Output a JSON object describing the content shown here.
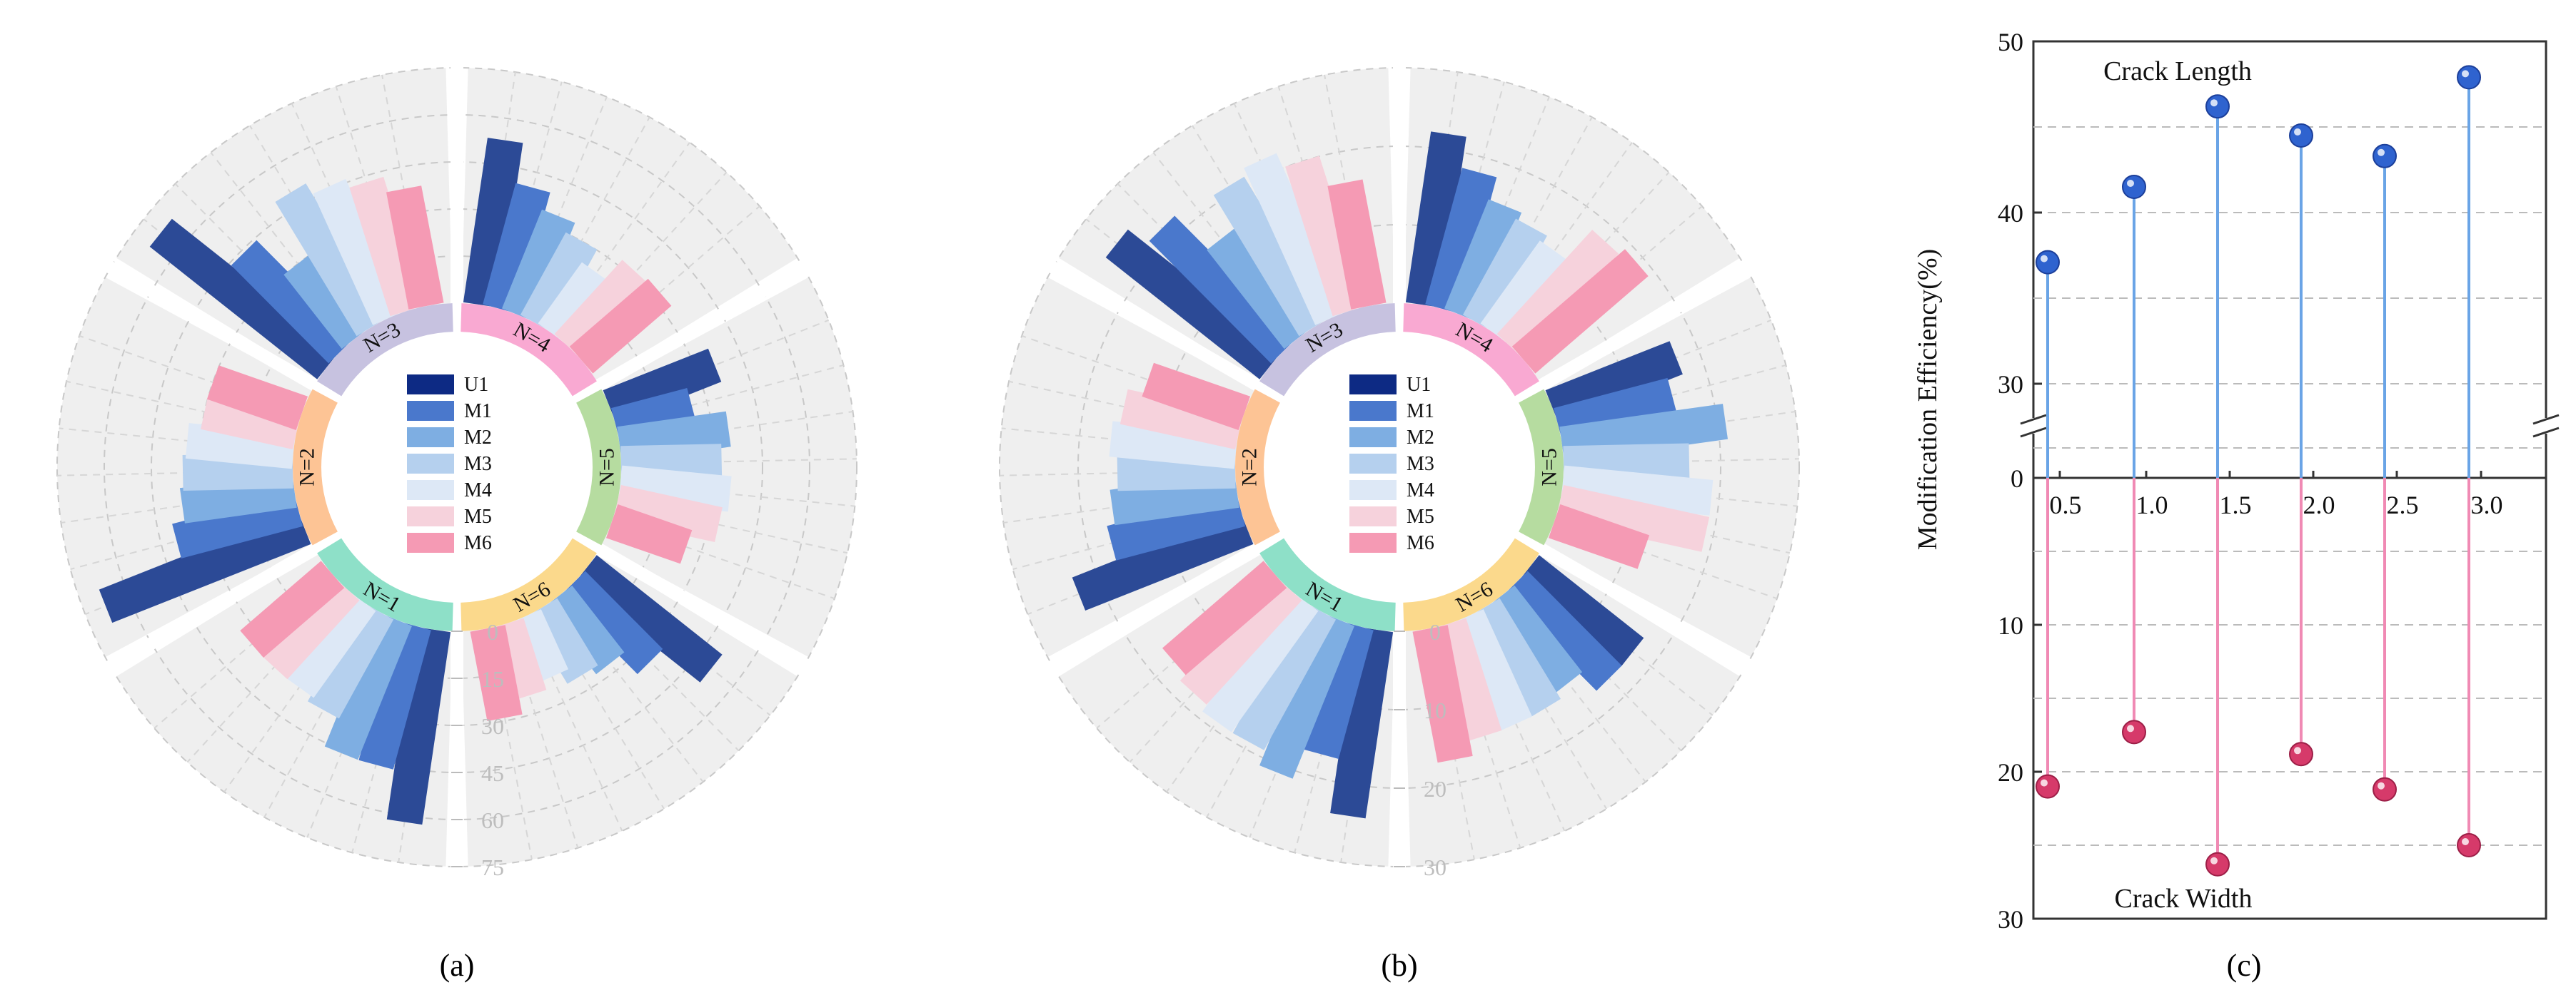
{
  "colors": {
    "U1": "#2c4a96",
    "M1": "#4a78cc",
    "M2": "#7eaee2",
    "M3": "#b5d0ee",
    "M4": "#dde8f6",
    "M5": "#f6d2dc",
    "M6": "#f59ab4",
    "ring_bg": "#efefef",
    "N1": "#8ee0c8",
    "N2": "#fdc495",
    "N3": "#c7c2e0",
    "N4": "#f9a9d2",
    "N5": "#b6dca0",
    "N6": "#fbd98c",
    "length_line": "#6aa4e6",
    "length_marker": "#2f63cf",
    "width_line": "#f08ab4",
    "width_marker": "#d63a6a",
    "grid": "#bbbbbb",
    "axis": "#333333"
  },
  "chart_data": [
    {
      "type": "polar-bar",
      "panel_label": "(a)",
      "legend": [
        "U1",
        "M1",
        "M2",
        "M3",
        "M4",
        "M5",
        "M6"
      ],
      "groups": [
        "N=1",
        "N=2",
        "N=3",
        "N=4",
        "N=5",
        "N=6"
      ],
      "radial_ticks": [
        "0",
        "15",
        "30",
        "45",
        "60",
        "75"
      ],
      "rlim": [
        0,
        75
      ],
      "series": [
        {
          "name": "U1",
          "values": [
            62,
            68,
            68,
            53,
            36,
            51
          ]
        },
        {
          "name": "M1",
          "values": [
            46,
            40,
            44,
            40,
            25,
            35
          ]
        },
        {
          "name": "M2",
          "values": [
            46,
            36,
            30,
            34,
            35,
            27
          ]
        },
        {
          "name": "M3",
          "values": [
            36,
            35,
            50,
            30,
            32,
            25
          ]
        },
        {
          "name": "M4",
          "values": [
            34,
            34,
            46,
            24,
            35,
            21
          ]
        },
        {
          "name": "M5",
          "values": [
            34,
            30,
            43,
            32,
            33,
            24
          ]
        },
        {
          "name": "M6",
          "values": [
            34,
            30,
            38,
            33,
            25,
            29
          ]
        }
      ]
    },
    {
      "type": "polar-bar",
      "panel_label": "(b)",
      "legend": [
        "U1",
        "M1",
        "M2",
        "M3",
        "M4",
        "M5",
        "M6"
      ],
      "groups": [
        "N=1",
        "N=2",
        "N=3",
        "N=4",
        "N=5",
        "N=6"
      ],
      "radial_ticks": [
        "0",
        "10",
        "20",
        "30"
      ],
      "rlim": [
        0,
        30
      ],
      "series": [
        {
          "name": "U1",
          "values": [
            24,
            23,
            25,
            22,
            17,
            17
          ]
        },
        {
          "name": "M1",
          "values": [
            17,
            17,
            22,
            18,
            15,
            17
          ]
        },
        {
          "name": "M2",
          "values": [
            21,
            16,
            16,
            15,
            21,
            14
          ]
        },
        {
          "name": "M3",
          "values": [
            19,
            15,
            21,
            14,
            16,
            15
          ]
        },
        {
          "name": "M4",
          "values": [
            19,
            16,
            22,
            13,
            19,
            15
          ]
        },
        {
          "name": "M5",
          "values": [
            18,
            15,
            20,
            18,
            19,
            15
          ]
        },
        {
          "name": "M6",
          "values": [
            17,
            13,
            16,
            19,
            12,
            17
          ]
        }
      ]
    },
    {
      "type": "lollipop",
      "panel_label": "(c)",
      "ylabel": "Modification Efficiency(%)",
      "x": [
        0.4,
        0.9,
        1.4,
        1.9,
        2.4,
        2.9
      ],
      "x_ticks": [
        "0.5",
        "1.0",
        "1.5",
        "2.0",
        "2.5",
        "3.0"
      ],
      "upper_ticks": [
        "50",
        "40",
        "30",
        "0"
      ],
      "lower_ticks": [
        "10",
        "20",
        "30"
      ],
      "upper_ylim": [
        27,
        50
      ],
      "lower_ylim": [
        0,
        30
      ],
      "series": [
        {
          "name": "Crack Length",
          "values": [
            37.1,
            41.5,
            46.2,
            44.5,
            43.3,
            47.9
          ]
        },
        {
          "name": "Crack Width",
          "values": [
            21.0,
            17.3,
            26.3,
            18.8,
            21.2,
            25.0
          ]
        }
      ]
    }
  ]
}
